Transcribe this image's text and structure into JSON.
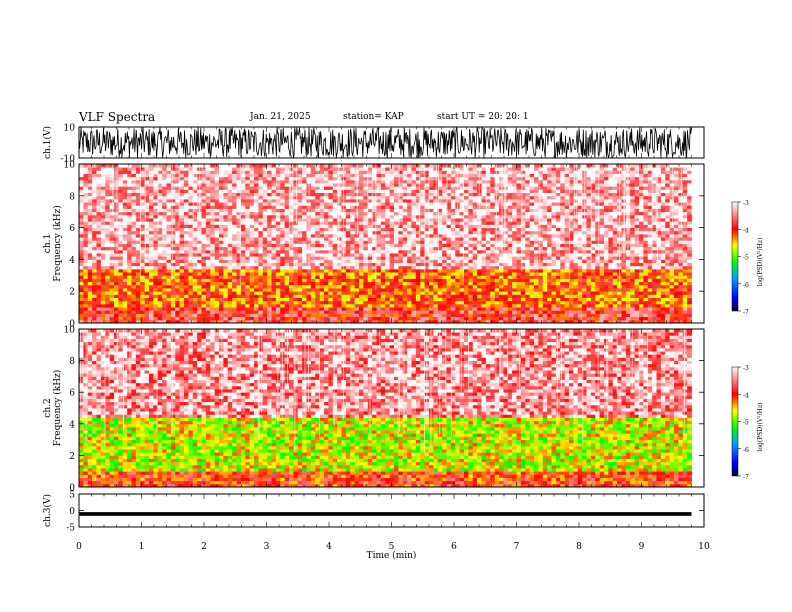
{
  "header": {
    "title": "VLF Spectra",
    "date": "Jan. 21, 2025",
    "station": "station= KAP",
    "start": "start  UT  =   20: 20: 1"
  },
  "chart_data": [
    {
      "type": "line",
      "panel": "ch1_waveform",
      "ylabel": "ch.1(V)",
      "ylim": [
        -10,
        10
      ],
      "yticks": [
        "10",
        "-10"
      ],
      "xlim": [
        0,
        10
      ],
      "color": "#000000",
      "description_of_series": "dense noise waveform spanning roughly -10 to 10 V across 0 to 9.8 min"
    },
    {
      "type": "heatmap",
      "panel": "ch1_spectrogram",
      "ylabel": "ch.1\nFrequency  (kHz)",
      "ylim": [
        0,
        10
      ],
      "yticks": [
        "0",
        "2",
        "4",
        "6",
        "8",
        "10"
      ],
      "xlim": [
        0,
        10
      ],
      "data_end_min": 9.8,
      "colorbar": {
        "label": "log(PSD)(V²/Hz)",
        "ticks": [
          "-3",
          "-4",
          "-5",
          "-6",
          "-7"
        ],
        "range": [
          -7,
          -3
        ]
      },
      "bands": [
        {
          "freq_khz": [
            0,
            1
          ],
          "level": -3.8
        },
        {
          "freq_khz": [
            1,
            3.5
          ],
          "level": -4.2
        },
        {
          "freq_khz": [
            3.5,
            10
          ],
          "level": -3.3
        }
      ]
    },
    {
      "type": "heatmap",
      "panel": "ch2_spectrogram",
      "ylabel": "ch.2\nFrequency  (kHz)",
      "ylim": [
        0,
        10
      ],
      "yticks": [
        "0",
        "2",
        "4",
        "6",
        "8",
        "10"
      ],
      "xlim": [
        0,
        10
      ],
      "data_end_min": 9.8,
      "colorbar": {
        "label": "log(PSD)(V²/Hz)",
        "ticks": [
          "-3",
          "-4",
          "-5",
          "-6",
          "-7"
        ],
        "range": [
          -7,
          -3
        ]
      },
      "bands": [
        {
          "freq_khz": [
            0,
            1
          ],
          "level": -4.0
        },
        {
          "freq_khz": [
            1,
            4.5
          ],
          "level": -4.7
        },
        {
          "freq_khz": [
            4.5,
            10
          ],
          "level": -3.4
        }
      ]
    },
    {
      "type": "line",
      "panel": "ch3_waveform",
      "ylabel": "ch.3(V)",
      "ylim": [
        -5,
        5
      ],
      "yticks": [
        "5",
        "0",
        "-5"
      ],
      "xlim": [
        0,
        10
      ],
      "color": "#000000",
      "description_of_series": "thin band near -1 V across 0 to 9.8 min"
    }
  ],
  "xaxis": {
    "label": "Time  (min)",
    "ticks": [
      "0",
      "1",
      "2",
      "3",
      "4",
      "5",
      "6",
      "7",
      "8",
      "9",
      "10"
    ]
  }
}
